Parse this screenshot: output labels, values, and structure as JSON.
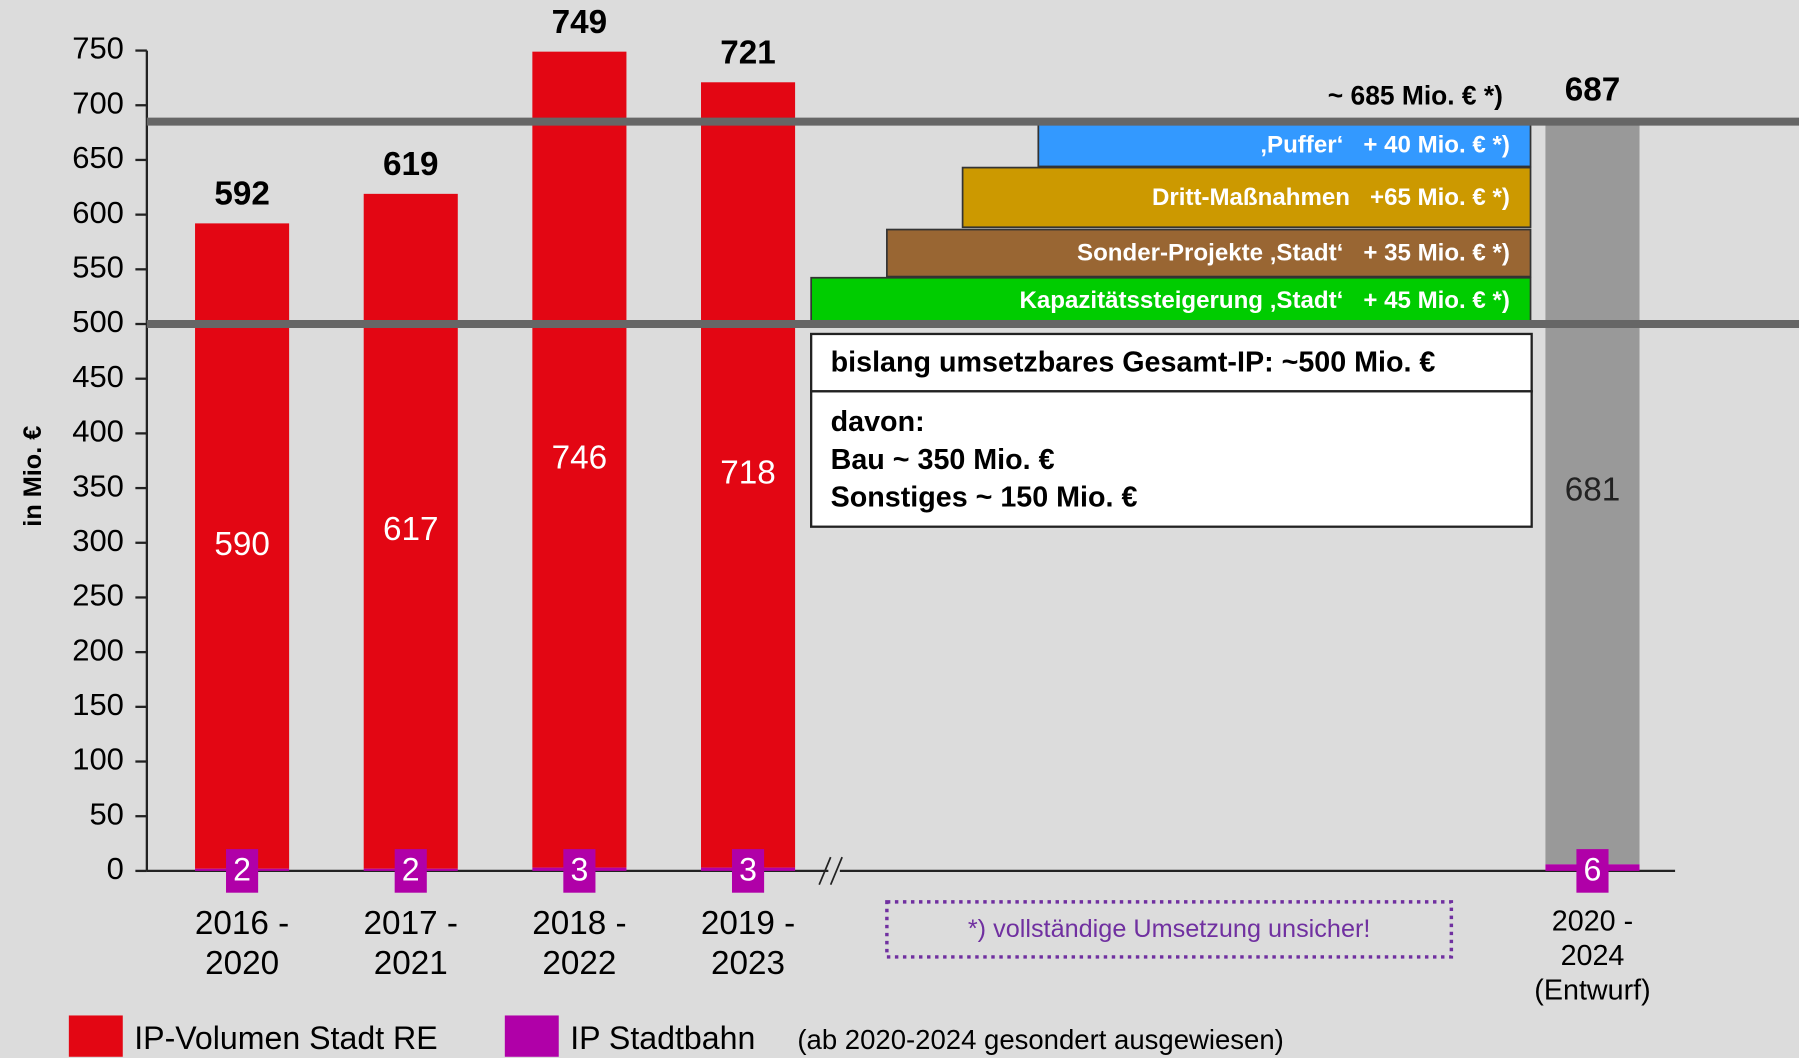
{
  "chart_data": {
    "type": "stacked_bar",
    "y_label": "in Mio. €",
    "categories": [
      "2016 -\n2020",
      "2017 -\n2021",
      "2018 -\n2022",
      "2019 -\n2023",
      "2020 -\n2024\n(Entwurf)"
    ],
    "series": [
      {
        "name": "IP Stadtbahn",
        "color": "#b000a8",
        "values": [
          2,
          2,
          3,
          3,
          6
        ]
      },
      {
        "name": "IP-Volumen Stadt RE",
        "color": "#e30613",
        "point_colors": [
          "#e30613",
          "#e30613",
          "#e30613",
          "#e30613",
          "#999999"
        ],
        "label_colors": [
          "#ffffff",
          "#ffffff",
          "#ffffff",
          "#ffffff",
          "#222222"
        ],
        "values": [
          590,
          617,
          746,
          718,
          681
        ]
      }
    ],
    "totals": [
      592,
      619,
      749,
      721,
      687
    ],
    "ylim": [
      0,
      750
    ],
    "yticks": [
      0,
      50,
      100,
      150,
      200,
      250,
      300,
      350,
      400,
      450,
      500,
      550,
      600,
      650,
      700,
      750
    ],
    "reference_lines": [
      {
        "value": 685,
        "label": "~ 685 Mio. € *)"
      },
      {
        "value": 500
      }
    ],
    "bands": [
      {
        "label": "‚Puffer‘   + 40 Mio. € *)",
        "color": "#3399ff"
      },
      {
        "label": "Dritt-Maßnahmen   +65 Mio. € *)",
        "color": "#cc9900"
      },
      {
        "label": "Sonder-Projekte ‚Stadt‘   + 35 Mio. € *)",
        "color": "#996633"
      },
      {
        "label": "Kapazitätssteigerung ‚Stadt‘   + 45 Mio. € *)",
        "color": "#00cc00"
      }
    ],
    "info_box": {
      "title": "bislang umsetzbares Gesamt-IP: ~500 Mio. €",
      "lines": [
        "davon:",
        "Bau ~ 350 Mio. €",
        "Sonstiges ~ 150 Mio. €"
      ]
    },
    "note": "*) vollständige Umsetzung unsicher!",
    "legend_note": "(ab 2020-2024 gesondert ausgewiesen)"
  }
}
